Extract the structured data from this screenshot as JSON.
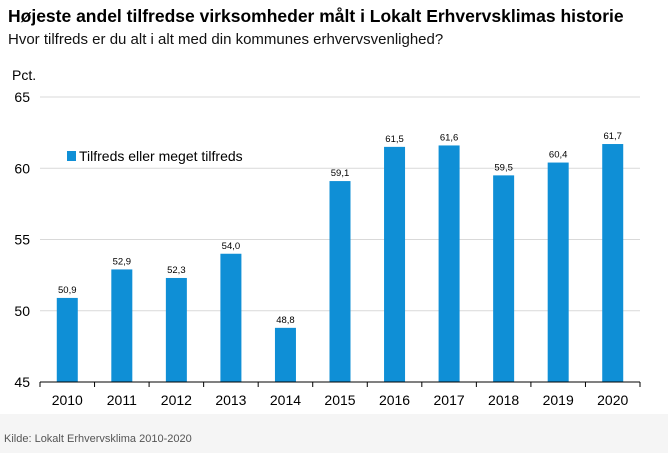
{
  "header": {
    "title": "Højeste andel tilfredse virksomheder målt i Lokalt Erhvervsklimas historie",
    "subtitle": "Hvor tilfreds er du alt i alt med din kommunes erhvervsvenlighed?"
  },
  "footer": {
    "source": "Kilde: Lokalt Erhvervsklima 2010-2020"
  },
  "chart_data": {
    "type": "bar",
    "title": "Højeste andel tilfredse virksomheder målt i Lokalt Erhvervsklimas historie",
    "subtitle": "Hvor tilfreds er du alt i alt med din kommunes erhvervsvenlighed?",
    "ylabel": "Pct.",
    "xlabel": "",
    "categories": [
      "2010",
      "2011",
      "2012",
      "2013",
      "2014",
      "2015",
      "2016",
      "2017",
      "2018",
      "2019",
      "2020"
    ],
    "series": [
      {
        "name": "Tilfreds eller meget tilfreds",
        "values": [
          50.9,
          52.9,
          52.3,
          54.0,
          48.8,
          59.1,
          61.5,
          61.6,
          59.5,
          60.4,
          61.7
        ],
        "labels": [
          "50,9",
          "52,9",
          "52,3",
          "54,0",
          "48,8",
          "59,1",
          "61,5",
          "61,6",
          "59,5",
          "60,4",
          "61,7"
        ]
      }
    ],
    "ylim": [
      45,
      65
    ],
    "yticks": [
      45,
      50,
      55,
      60,
      65
    ],
    "grid": true,
    "legend": "top-left",
    "colors": {
      "bar": "#0f8fd6",
      "grid": "#d9d9d9",
      "axis": "#000000"
    }
  }
}
